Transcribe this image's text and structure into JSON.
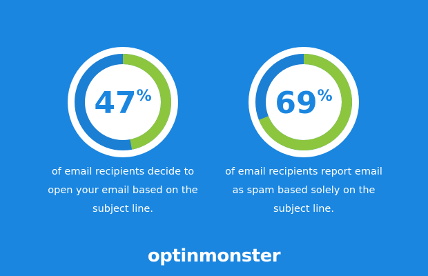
{
  "chart_data": [
    {
      "type": "donut",
      "values": [
        47
      ],
      "value_labels": [
        "47%"
      ],
      "ylim": [
        0,
        100
      ],
      "color": "#8cc63f",
      "track_color": "#1b7fd4",
      "caption": "of email recipients decide to open your email based on the subject line."
    },
    {
      "type": "donut",
      "values": [
        69
      ],
      "value_labels": [
        "69%"
      ],
      "ylim": [
        0,
        100
      ],
      "color": "#8cc63f",
      "track_color": "#1b7fd4",
      "caption": "of email recipients report email as spam based solely on the subject line."
    }
  ],
  "footer": {
    "logo_text": "optinmonster"
  }
}
